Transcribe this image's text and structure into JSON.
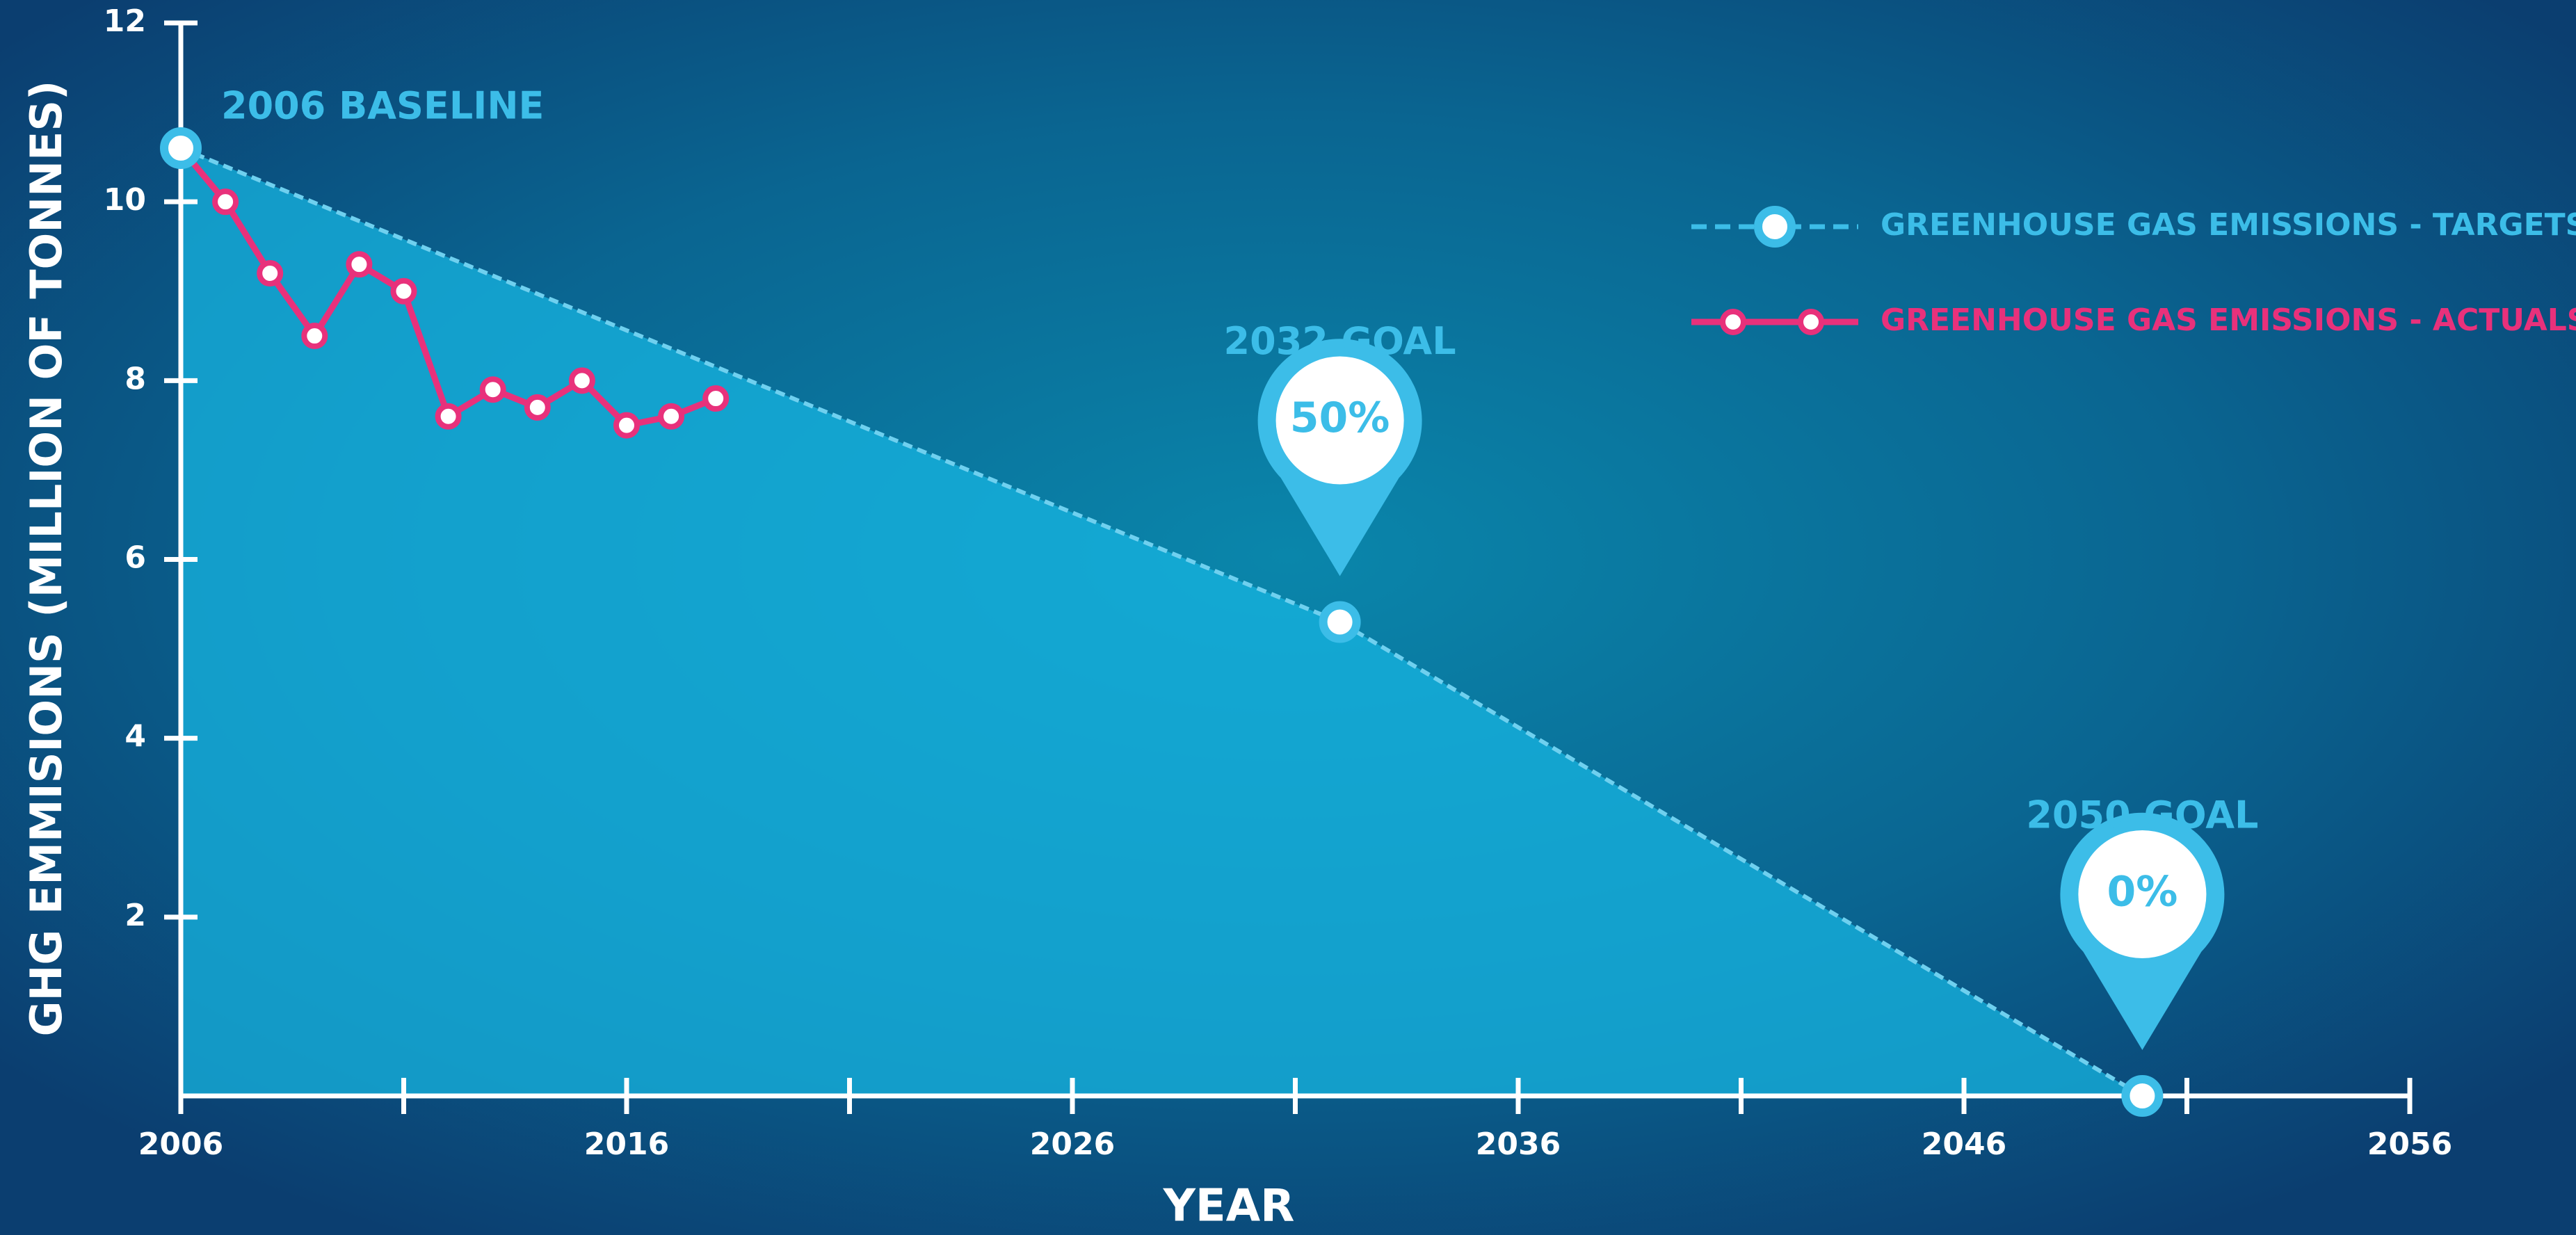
{
  "chart_data": {
    "type": "line",
    "xlabel": "YEAR",
    "ylabel": "GHG EMMISIONS (MILLION OF TONNES)",
    "xlim": [
      2006,
      2056
    ],
    "xticks": [
      2006,
      2016,
      2026,
      2036,
      2046,
      2056
    ],
    "xminor_ticks": [
      2011,
      2021,
      2031,
      2041,
      2051
    ],
    "ylim": [
      0,
      12
    ],
    "yticks": [
      2,
      4,
      6,
      8,
      10,
      12
    ],
    "legend": "top-right",
    "series": [
      {
        "name": "GREENHOUSE GAS EMISSIONS - TARGETS",
        "color": "#3cbde8",
        "x": [
          2006,
          2032,
          2050
        ],
        "values": [
          10.6,
          5.3,
          0
        ]
      },
      {
        "name": "GREENHOUSE GAS EMISSIONS - ACTUALS",
        "color": "#e8317b",
        "x": [
          2006,
          2007,
          2008,
          2009,
          2010,
          2011,
          2012,
          2013,
          2014,
          2015,
          2016,
          2017,
          2018
        ],
        "values": [
          10.6,
          10.0,
          9.2,
          8.5,
          9.3,
          9.0,
          7.6,
          7.9,
          7.7,
          8.0,
          7.5,
          7.6,
          7.8
        ]
      }
    ],
    "annotations": [
      {
        "text": "2006 BASELINE"
      },
      {
        "text": "2032 GOAL",
        "pin": "50%"
      },
      {
        "text": "2050 GOAL",
        "pin": "0%"
      }
    ]
  }
}
